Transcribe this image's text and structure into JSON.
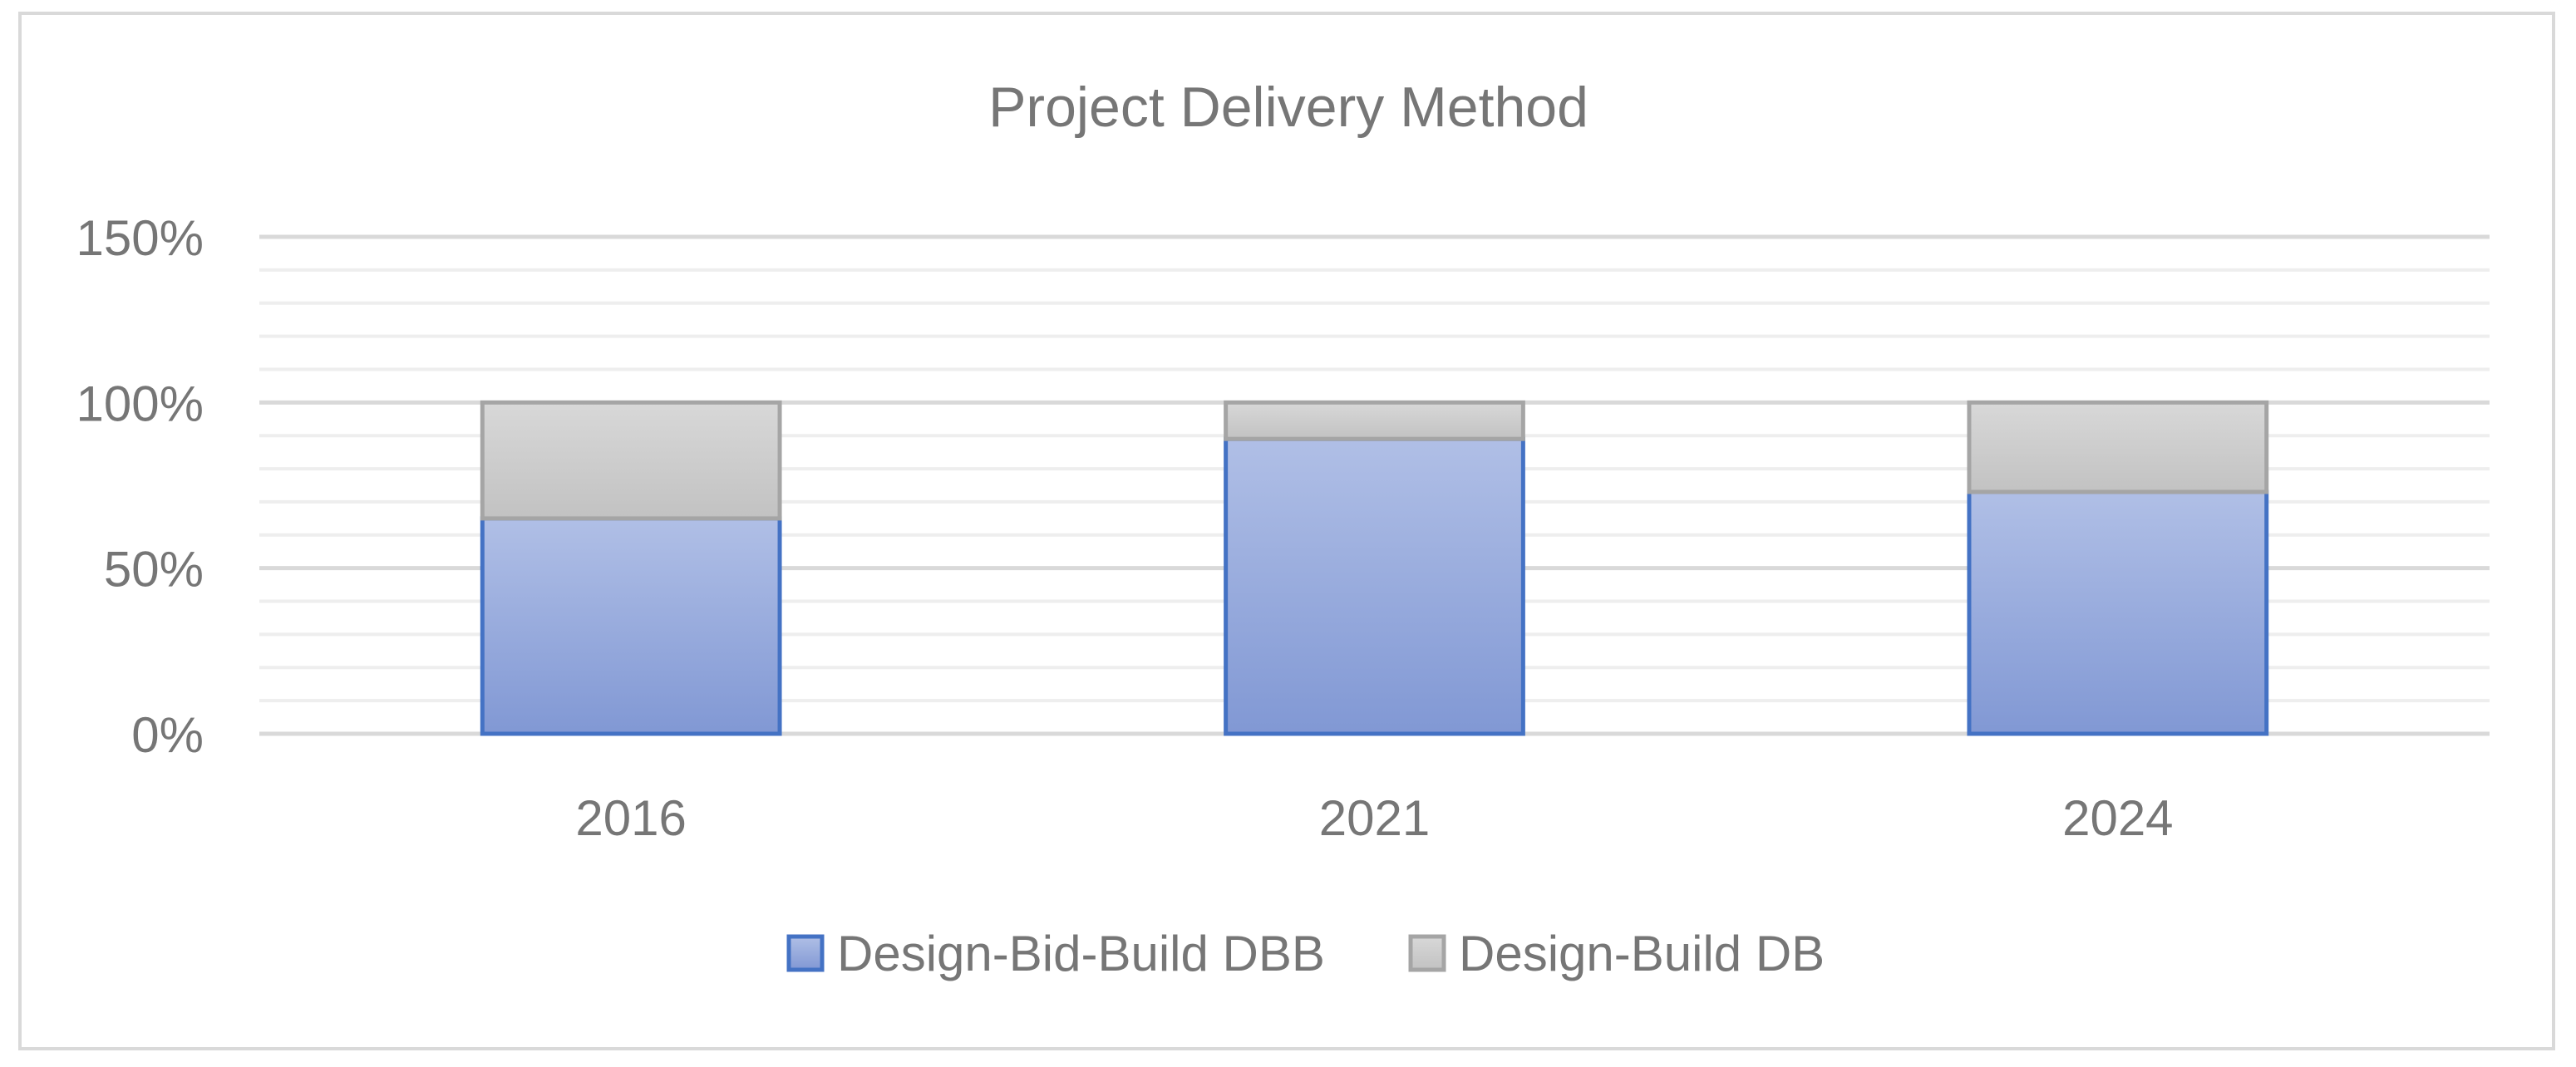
{
  "chart_data": {
    "type": "bar",
    "stacked": true,
    "title": "Project Delivery Method",
    "xlabel": "",
    "ylabel": "",
    "categories": [
      "2016",
      "2021",
      "2024"
    ],
    "series": [
      {
        "name": "Design-Bid-Build DBB",
        "values": [
          65,
          89,
          73
        ],
        "color": "#8fa5d9",
        "border_color": "#4472c4"
      },
      {
        "name": "Design-Build DB",
        "values": [
          35,
          11,
          27
        ],
        "color": "#cccccc",
        "border_color": "#a5a5a5"
      }
    ],
    "ylim": [
      0,
      150
    ],
    "yticks": [
      0,
      50,
      100,
      150
    ],
    "ytick_labels": [
      "0%",
      "50%",
      "100%",
      "150%"
    ],
    "y_unit": "%",
    "grid": true,
    "minor_grid": true,
    "legend_position": "bottom"
  }
}
